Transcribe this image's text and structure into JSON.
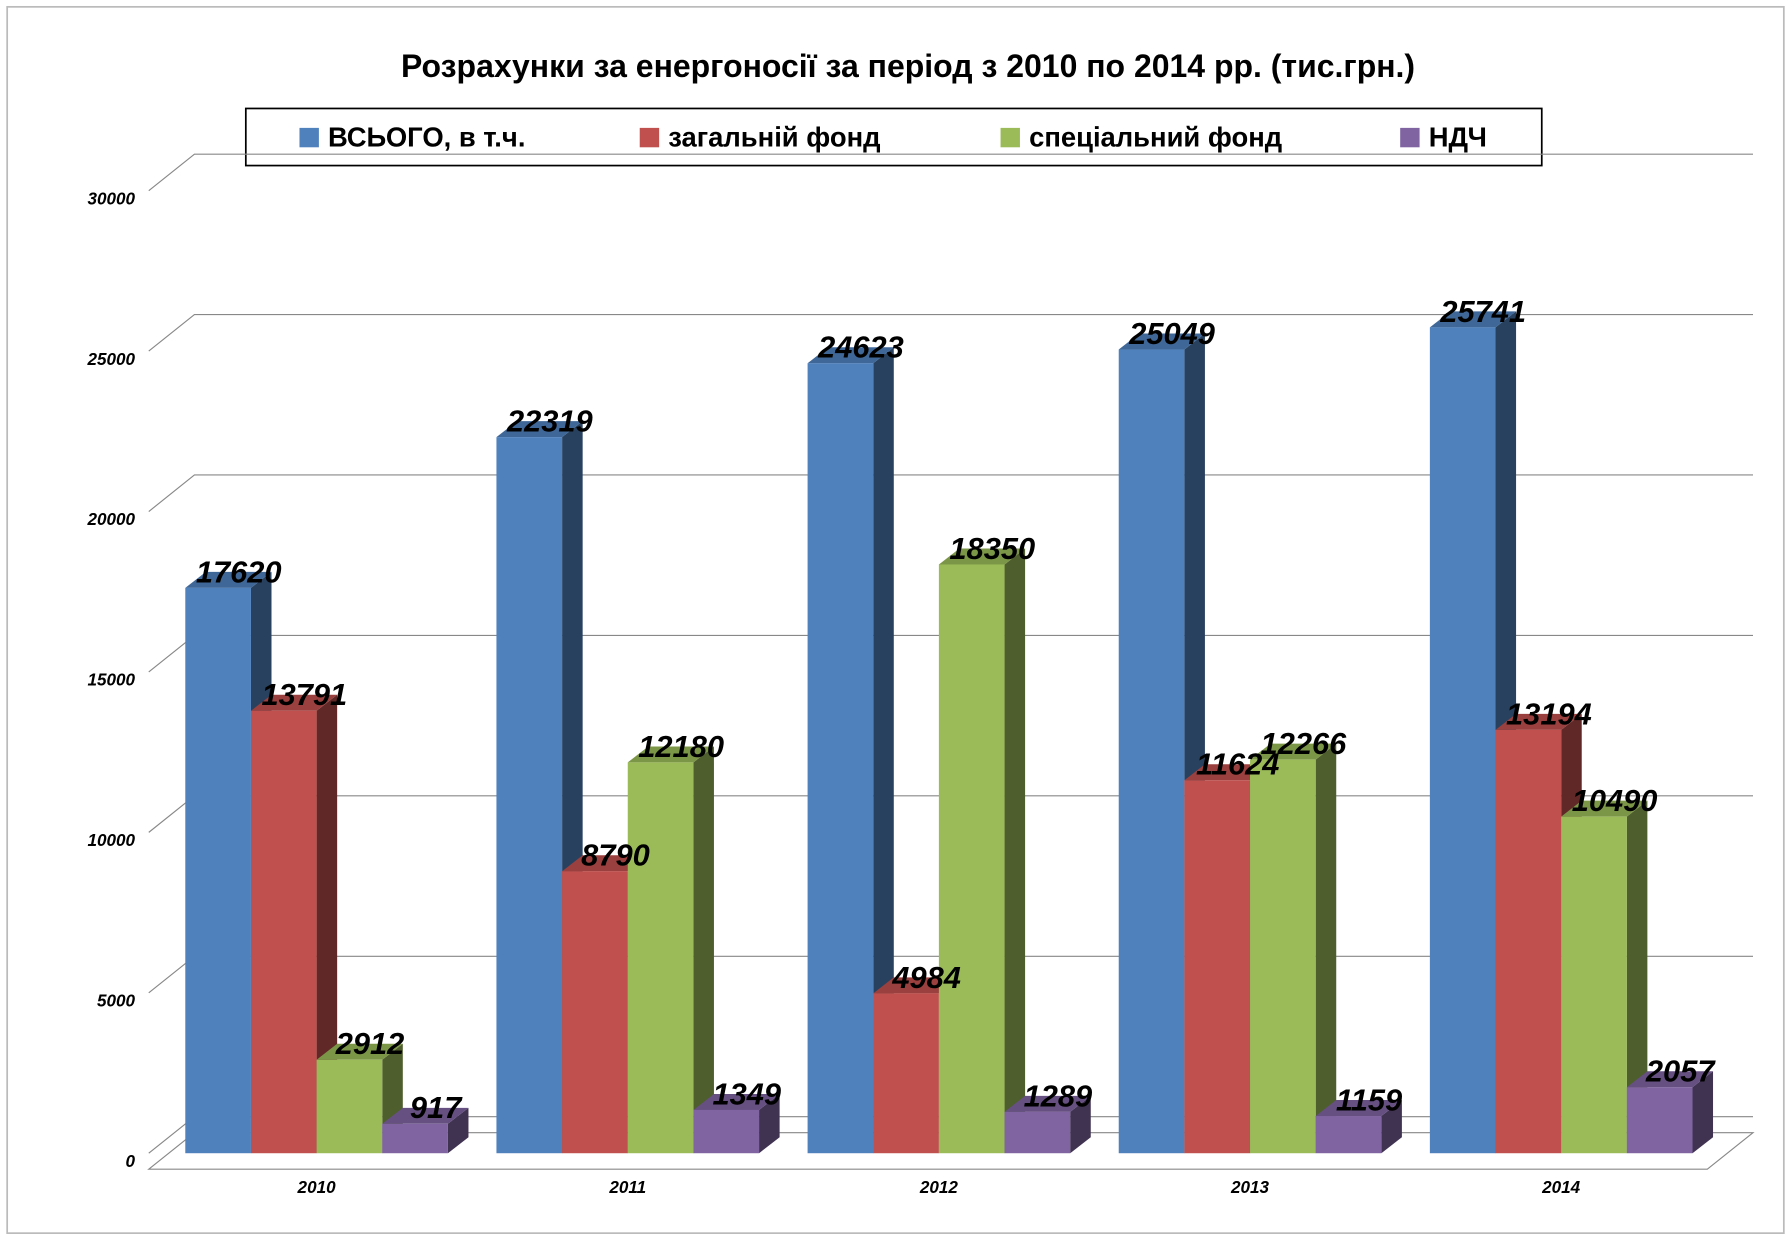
{
  "chart_data": {
    "type": "bar3d",
    "title": "Розрахунки за енергоносії за період з 2010 по 2014 рр. (тис.грн.)",
    "categories": [
      "2010",
      "2011",
      "2012",
      "2013",
      "2014"
    ],
    "series": [
      {
        "name": "ВСЬОГО, в т.ч.",
        "color": "#4f81bd",
        "values": [
          17620,
          22319,
          24623,
          25049,
          25741
        ]
      },
      {
        "name": "загальній фонд",
        "color": "#c0504d",
        "values": [
          13791,
          8790,
          4984,
          11624,
          13194
        ]
      },
      {
        "name": "спеціальний фонд",
        "color": "#9bbb59",
        "values": [
          2912,
          12180,
          18350,
          12266,
          10490
        ]
      },
      {
        "name": "НДЧ",
        "color": "#8064a2",
        "values": [
          917,
          1349,
          1289,
          1159,
          2057
        ]
      }
    ],
    "ylim": [
      0,
      30000
    ],
    "yticks": [
      0,
      5000,
      10000,
      15000,
      20000,
      25000,
      30000
    ],
    "grid": true,
    "legend": "top"
  }
}
